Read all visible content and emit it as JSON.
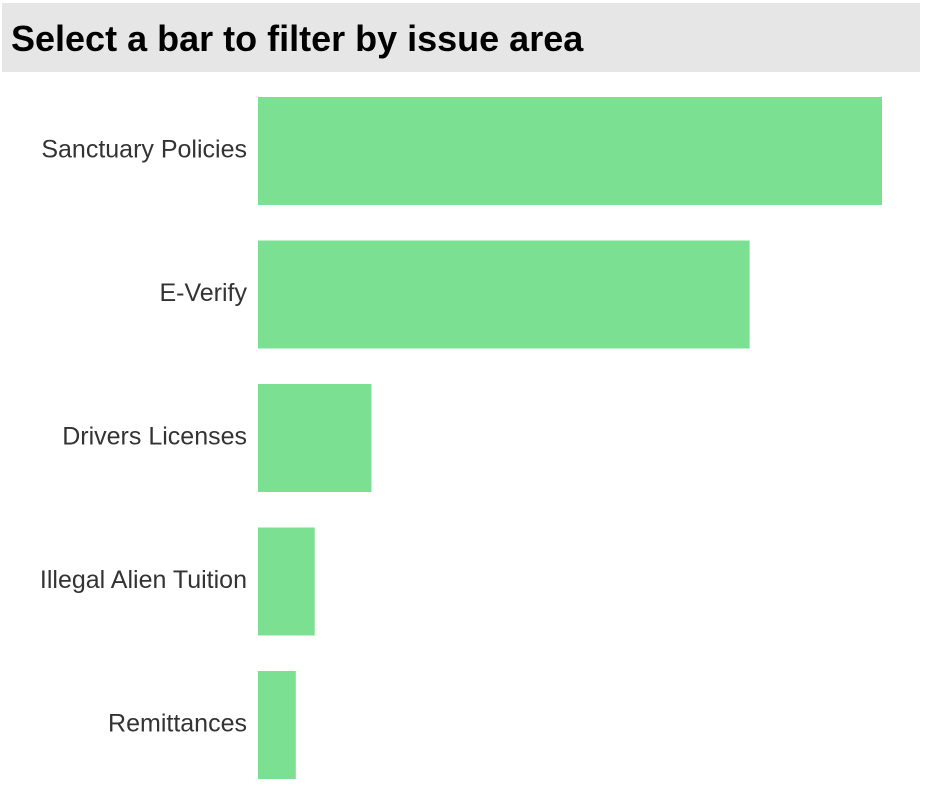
{
  "chart_data": {
    "type": "bar",
    "orientation": "horizontal",
    "title": "Select a bar to filter by issue area",
    "categories": [
      "Sanctuary Policies",
      "E-Verify",
      "Drivers Licenses",
      "Illegal Alien Tuition",
      "Remittances"
    ],
    "values": [
      33,
      26,
      6,
      3,
      2
    ],
    "color": "#7ce093"
  }
}
